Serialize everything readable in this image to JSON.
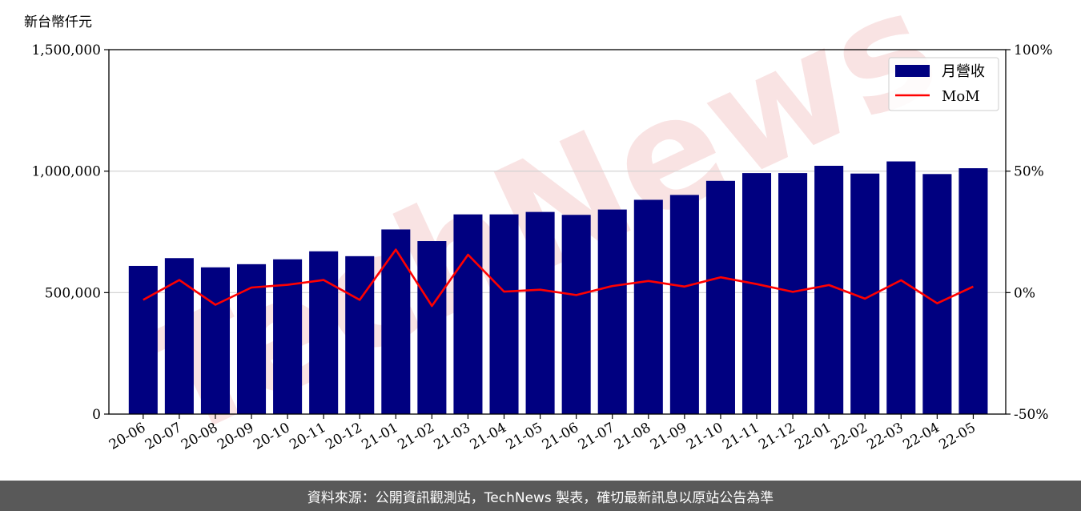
{
  "watermark": "TechNews",
  "footer_text": "資料來源：公開資訊觀測站，TechNews 製表，確切最新訊息以原站公告為準",
  "chart_data": {
    "type": "bar",
    "ylabel": "新台幣仟元",
    "categories": [
      "20-06",
      "20-07",
      "20-08",
      "20-09",
      "20-10",
      "20-11",
      "20-12",
      "21-01",
      "21-02",
      "21-03",
      "21-04",
      "21-05",
      "21-06",
      "21-07",
      "21-08",
      "21-09",
      "21-10",
      "21-11",
      "21-12",
      "22-01",
      "22-02",
      "22-03",
      "22-04",
      "22-05"
    ],
    "series": [
      {
        "name": "月營收",
        "type": "bar",
        "axis": "left",
        "color": "#000080",
        "values": [
          610000,
          642000,
          604000,
          617000,
          637000,
          670000,
          650000,
          760000,
          712000,
          822000,
          822000,
          832000,
          820000,
          842000,
          882000,
          902000,
          960000,
          992000,
          992000,
          1022000,
          990000,
          1040000,
          988000,
          1012000
        ]
      },
      {
        "name": "MoM",
        "type": "line",
        "axis": "right",
        "color": "#ff0000",
        "values": [
          -3,
          5.2,
          -5,
          2.1,
          3.2,
          5.2,
          -3,
          17.7,
          -5.5,
          15.6,
          0.4,
          1.2,
          -1,
          2.7,
          4.8,
          2.5,
          6.3,
          3.5,
          0.3,
          3.1,
          -2.5,
          5.1,
          -4.4,
          2.5
        ]
      }
    ],
    "y_left": {
      "ylim": [
        0,
        1500000
      ],
      "ticks": [
        0,
        500000,
        1000000,
        1500000
      ],
      "tick_labels": [
        "0",
        "500,000",
        "1,000,000",
        "1,500,000"
      ]
    },
    "y_right": {
      "ylim": [
        -50,
        100
      ],
      "ticks": [
        -50,
        0,
        50,
        100
      ],
      "tick_labels": [
        "-50%",
        "0%",
        "50%",
        "100%"
      ]
    },
    "grid": "horizontal",
    "legend_position": "top-right"
  }
}
